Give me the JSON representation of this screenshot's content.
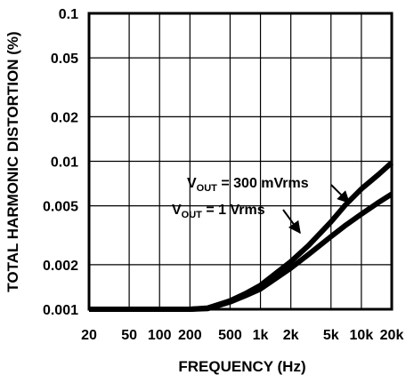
{
  "chart_data": {
    "type": "line",
    "title": "",
    "xlabel": "FREQUENCY (Hz)",
    "ylabel": "TOTAL HARMONIC DISTORTION (%)",
    "x_scale": "log",
    "y_scale": "log",
    "xlim": [
      20,
      20000
    ],
    "ylim": [
      0.001,
      0.1
    ],
    "grid": true,
    "x_ticks": [
      {
        "value": 20,
        "label": "20"
      },
      {
        "value": 50,
        "label": "50"
      },
      {
        "value": 100,
        "label": "100"
      },
      {
        "value": 200,
        "label": "200"
      },
      {
        "value": 500,
        "label": "500"
      },
      {
        "value": 1000,
        "label": "1k"
      },
      {
        "value": 2000,
        "label": "2k"
      },
      {
        "value": 5000,
        "label": "5k"
      },
      {
        "value": 10000,
        "label": "10k"
      },
      {
        "value": 20000,
        "label": "20k"
      }
    ],
    "y_ticks": [
      {
        "value": 0.001,
        "label": "0.001"
      },
      {
        "value": 0.002,
        "label": "0.002"
      },
      {
        "value": 0.005,
        "label": "0.005"
      },
      {
        "value": 0.01,
        "label": "0.01"
      },
      {
        "value": 0.02,
        "label": "0.02"
      },
      {
        "value": 0.05,
        "label": "0.05"
      },
      {
        "value": 0.1,
        "label": "0.1"
      }
    ],
    "series": [
      {
        "name": "VOUT = 300 mVrms",
        "x": [
          20,
          50,
          100,
          200,
          300,
          500,
          700,
          1000,
          2000,
          3000,
          5000,
          7000,
          10000,
          15000,
          20000
        ],
        "y": [
          0.001,
          0.001,
          0.001,
          0.001,
          0.00102,
          0.00114,
          0.00127,
          0.00145,
          0.0021,
          0.0027,
          0.0039,
          0.0051,
          0.0065,
          0.0082,
          0.0098
        ]
      },
      {
        "name": "VOUT = 1 Vrms",
        "x": [
          20,
          50,
          100,
          200,
          300,
          500,
          700,
          1000,
          2000,
          3000,
          5000,
          7000,
          10000,
          15000,
          20000
        ],
        "y": [
          0.001,
          0.001,
          0.001,
          0.001,
          0.00101,
          0.00112,
          0.00123,
          0.00137,
          0.0019,
          0.00235,
          0.0031,
          0.0037,
          0.0044,
          0.0053,
          0.006
        ]
      }
    ],
    "annotations": [
      {
        "main": "V",
        "sub": "OUT",
        "rest": " = 300 mVrms"
      },
      {
        "main": "V",
        "sub": "OUT",
        "rest": " = 1 Vrms"
      }
    ]
  }
}
